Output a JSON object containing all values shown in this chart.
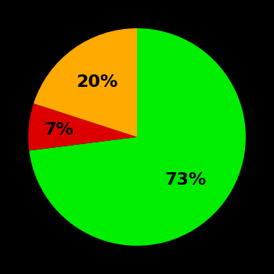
{
  "slices": [
    73,
    7,
    20
  ],
  "colors": [
    "#00ee00",
    "#dd0000",
    "#ffaa00"
  ],
  "labels": [
    "73%",
    "7%",
    "20%"
  ],
  "background_color": "#000000",
  "text_color": "#000000",
  "startangle": 90,
  "counterclock": false,
  "label_r": [
    0.6,
    0.72,
    0.62
  ],
  "figsize": [
    3.5,
    3.5
  ],
  "dpi": 100
}
